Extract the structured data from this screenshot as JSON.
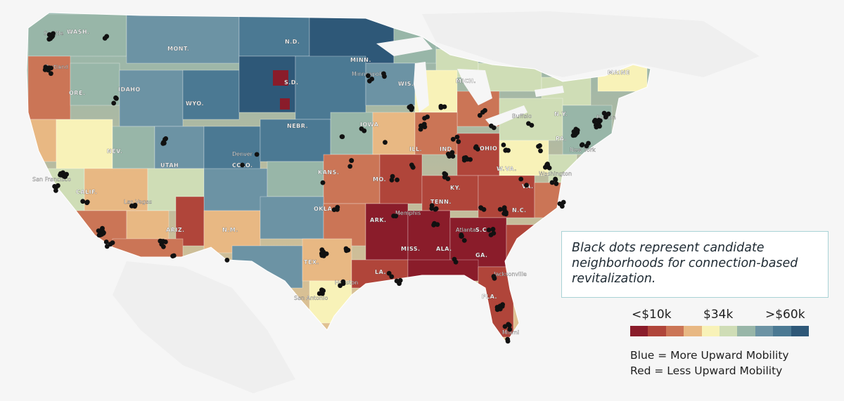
{
  "map": {
    "state_labels": [
      "WASH.",
      "MONT.",
      "N.D.",
      "MINN.",
      "MAINE",
      "ORE.",
      "IDAHO",
      "S.D.",
      "WIS.",
      "MICH.",
      "WYO.",
      "N.Y.",
      "NEBR.",
      "IOWA",
      "PA.",
      "NEV.",
      "ILL.",
      "IND.",
      "OHIO",
      "UTAH",
      "COLO.",
      "KANS.",
      "MO.",
      "W.VA.",
      "VA.",
      "CALIF.",
      "KY.",
      "TENN.",
      "N.C.",
      "OKLA.",
      "ARIZ.",
      "N.M.",
      "ARK.",
      "S.C.",
      "MISS.",
      "ALA.",
      "GA.",
      "TEX.",
      "LA.",
      "FLA."
    ],
    "city_labels": [
      "Seattle",
      "Portland",
      "Minneapolis",
      "Buffalo",
      "Boston",
      "New York",
      "Washington",
      "San Francisco",
      "Denver",
      "Las Vegas",
      "Memphis",
      "Atlanta",
      "Jacksonville",
      "Houston",
      "San Antonio",
      "Miami"
    ],
    "colors": {
      "dot": "#111111",
      "land_bg": "#f6f6f6"
    }
  },
  "callout": {
    "text": "Black dots represent candidate neighborhoods for connection-based revitalization."
  },
  "legend": {
    "low_label": "<$10k",
    "mid_label": "$34k",
    "high_label": ">$60k",
    "scale_colors": [
      "#8a1c2a",
      "#b0453a",
      "#cb7556",
      "#e8b883",
      "#f8f2b8",
      "#cfddb6",
      "#98b6a8",
      "#6c93a4",
      "#4b7993",
      "#2e5878"
    ],
    "blue_note": "Blue = More Upward Mobility",
    "red_note": "Red = Less Upward Mobility"
  }
}
